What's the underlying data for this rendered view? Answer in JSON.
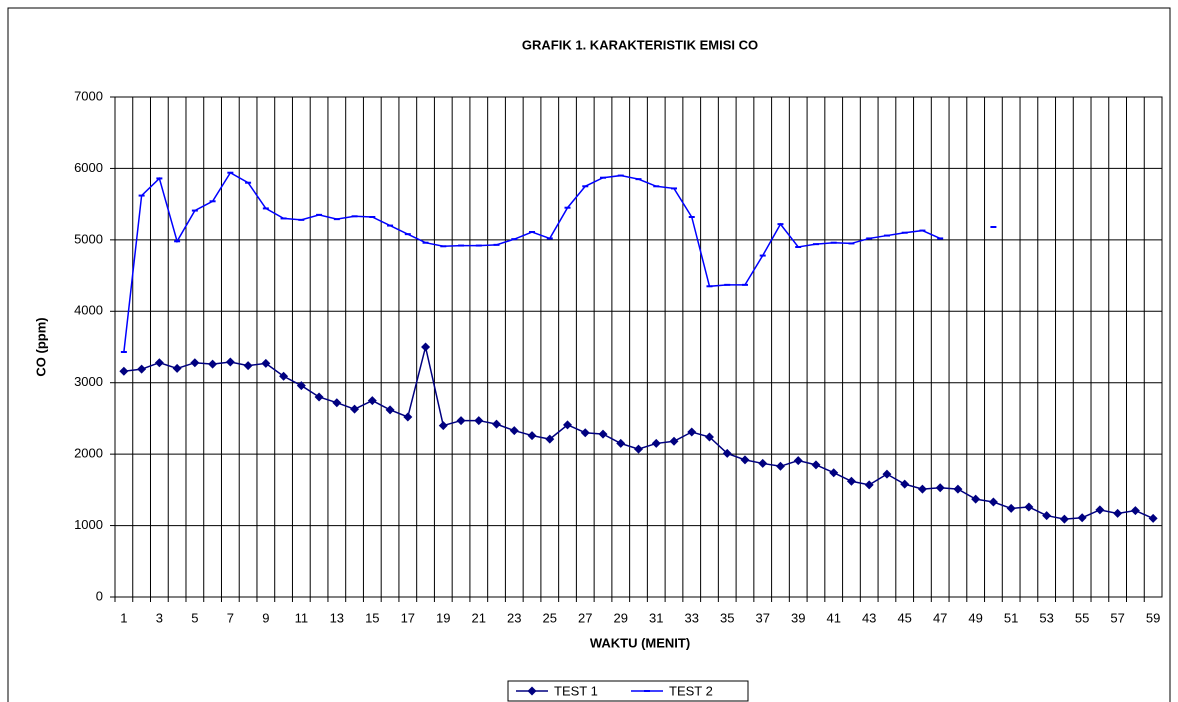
{
  "chart_data": {
    "type": "line",
    "title": "GRAFIK 1. KARAKTERISTIK EMISI CO",
    "x_label": "WAKTU (MENIT)",
    "y_label": "CO (ppm)",
    "categories": [
      "1",
      null,
      "3",
      null,
      "5",
      null,
      "7",
      null,
      "9",
      null,
      "11",
      null,
      "13",
      null,
      "15",
      null,
      "17",
      null,
      "19",
      null,
      "21",
      null,
      "23",
      null,
      "25",
      null,
      "27",
      null,
      "29",
      null,
      "31",
      null,
      "33",
      null,
      "35",
      null,
      "37",
      null,
      "39",
      null,
      "41",
      null,
      "43",
      null,
      "45",
      null,
      "47",
      null,
      "49",
      null,
      "51",
      null,
      "53",
      null,
      "55",
      null,
      "57",
      null,
      "59"
    ],
    "series": [
      {
        "name": "TEST 1",
        "color": "#000080",
        "marker": "diamond",
        "values": [
          3160,
          3190,
          3280,
          3200,
          3280,
          3260,
          3290,
          3240,
          3270,
          3090,
          2960,
          2800,
          2720,
          2630,
          2750,
          2620,
          2520,
          3500,
          2400,
          2470,
          2470,
          2420,
          2330,
          2260,
          2210,
          2410,
          2300,
          2280,
          2150,
          2070,
          2150,
          2180,
          2310,
          2240,
          2010,
          1920,
          1870,
          1830,
          1910,
          1850,
          1740,
          1620,
          1570,
          1720,
          1580,
          1510,
          1530,
          1510,
          1370,
          1330,
          1240,
          1260,
          1140,
          1090,
          1110,
          1220,
          1170,
          1210,
          1100
        ]
      },
      {
        "name": "TEST 2",
        "color": "#0000ff",
        "marker": "dash",
        "values": [
          3430,
          5620,
          5860,
          4980,
          5410,
          5540,
          5940,
          5800,
          5440,
          5300,
          5280,
          5350,
          5290,
          5330,
          5320,
          5200,
          5080,
          4960,
          4910,
          4920,
          4920,
          4930,
          5010,
          5110,
          5020,
          5450,
          5750,
          5870,
          5900,
          5850,
          5750,
          5720,
          5320,
          4350,
          4370,
          4370,
          4780,
          5220,
          4900,
          4940,
          4960,
          4950,
          5020,
          5060,
          5100,
          5130,
          5020,
          null,
          null,
          5180,
          null,
          null,
          null,
          null,
          null,
          null,
          null,
          null,
          null
        ]
      }
    ],
    "ylim": [
      0,
      7000
    ],
    "yticks": [
      0,
      1000,
      2000,
      3000,
      4000,
      5000,
      6000,
      7000
    ],
    "grid": true,
    "legend": "bottom"
  }
}
